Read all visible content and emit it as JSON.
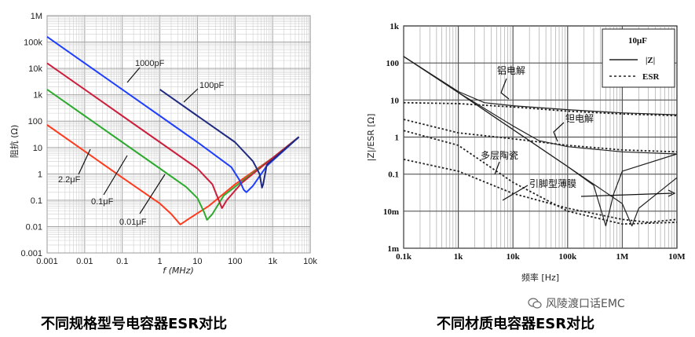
{
  "left_chart": {
    "y_ticks": [
      "1M",
      "100k",
      "10k",
      "1k",
      "100",
      "10",
      "1",
      "0.1",
      "0.01",
      "0.001"
    ],
    "x_ticks": [
      "0.001",
      "0.01",
      "0.1",
      "1",
      "10",
      "100",
      "1k",
      "10k"
    ],
    "ylabel": "阻抗 (Ω)",
    "xlabel": "f (MHz)",
    "annotations": [
      "1000pF",
      "100pF",
      "2.2μF",
      "0.1μF",
      "0.01μF"
    ],
    "caption": "不同规格型号电容器ESR对比"
  },
  "right_chart": {
    "y_ticks": [
      "1k",
      "100",
      "10",
      "1",
      "0.1",
      "10m",
      "1m"
    ],
    "x_ticks": [
      "0.1k",
      "1k",
      "10k",
      "100k",
      "1M",
      "10M"
    ],
    "ylabel": "|Z|/ESR [Ω]",
    "xlabel": "频率 [Hz]",
    "legend_title": "10μF",
    "legend_items": [
      "|Z|",
      "ESR"
    ],
    "annotations": [
      "铝电解",
      "钽电解",
      "多层陶瓷",
      "引脚型薄膜"
    ],
    "caption": "不同材质电容器ESR对比"
  },
  "watermark": "风陵渡口话EMC",
  "chart_data": [
    {
      "type": "line",
      "xlabel": "f (MHz)",
      "ylabel": "阻抗 (Ω)",
      "x_scale": "log",
      "y_scale": "log",
      "xlim": [
        0.001,
        10000
      ],
      "ylim": [
        0.001,
        1000000
      ],
      "grid": true,
      "series": [
        {
          "name": "2.2μF",
          "color": "#ff3b1f",
          "points": [
            [
              0.001,
              72
            ],
            [
              0.01,
              7.2
            ],
            [
              0.1,
              0.72
            ],
            [
              1,
              0.075
            ],
            [
              2,
              0.03
            ],
            [
              3.5,
              0.012
            ],
            [
              6,
              0.02
            ],
            [
              20,
              0.06
            ],
            [
              100,
              0.4
            ],
            [
              1000,
              4
            ],
            [
              5000,
              25
            ]
          ]
        },
        {
          "name": "0.1μF",
          "color": "#2eaa2e",
          "points": [
            [
              0.001,
              1590
            ],
            [
              0.01,
              159
            ],
            [
              0.1,
              15.9
            ],
            [
              1,
              1.6
            ],
            [
              5,
              0.32
            ],
            [
              10,
              0.12
            ],
            [
              15,
              0.035
            ],
            [
              18,
              0.018
            ],
            [
              25,
              0.03
            ],
            [
              50,
              0.15
            ],
            [
              200,
              0.7
            ],
            [
              1000,
              4
            ],
            [
              5000,
              25
            ]
          ]
        },
        {
          "name": "0.01μF",
          "color": "#cc1f3c",
          "points": [
            [
              0.001,
              15900
            ],
            [
              0.01,
              1590
            ],
            [
              0.1,
              159
            ],
            [
              1,
              15.9
            ],
            [
              10,
              1.6
            ],
            [
              25,
              0.4
            ],
            [
              35,
              0.12
            ],
            [
              45,
              0.05
            ],
            [
              60,
              0.1
            ],
            [
              150,
              0.45
            ],
            [
              1000,
              4
            ],
            [
              5000,
              25
            ]
          ]
        },
        {
          "name": "1000pF",
          "color": "#1f3fff",
          "points": [
            [
              0.001,
              159000
            ],
            [
              0.01,
              15900
            ],
            [
              0.1,
              1590
            ],
            [
              1,
              159
            ],
            [
              10,
              15.9
            ],
            [
              80,
              1.8
            ],
            [
              130,
              0.6
            ],
            [
              170,
              0.25
            ],
            [
              200,
              0.2
            ],
            [
              300,
              0.35
            ],
            [
              700,
              2
            ],
            [
              5000,
              25
            ]
          ]
        },
        {
          "name": "100pF",
          "color": "#1f2a80",
          "points": [
            [
              1,
              1590
            ],
            [
              10,
              159
            ],
            [
              100,
              15.9
            ],
            [
              300,
              3
            ],
            [
              450,
              1
            ],
            [
              520,
              0.3
            ],
            [
              560,
              0.4
            ],
            [
              700,
              2.2
            ],
            [
              5000,
              25
            ]
          ]
        }
      ]
    },
    {
      "type": "line",
      "xlabel": "频率 [Hz]",
      "ylabel": "|Z|/ESR [Ω]",
      "x_scale": "log",
      "y_scale": "log",
      "xlim": [
        100,
        10000000
      ],
      "ylim": [
        0.001,
        1000
      ],
      "grid": true,
      "legend": "top-right",
      "series": [
        {
          "name": "铝电解 |Z|",
          "style": "solid",
          "points": [
            [
              100,
              150
            ],
            [
              1000,
              17
            ],
            [
              3000,
              8.5
            ],
            [
              10000,
              7
            ],
            [
              100000,
              5.5
            ],
            [
              1000000,
              4.5
            ],
            [
              10000000,
              4
            ]
          ]
        },
        {
          "name": "铝电解 ESR",
          "style": "dashed",
          "points": [
            [
              100,
              8.5
            ],
            [
              1000,
              8
            ],
            [
              10000,
              6.5
            ],
            [
              100000,
              5
            ],
            [
              1000000,
              4.2
            ],
            [
              10000000,
              3.8
            ]
          ]
        },
        {
          "name": "钽电解 |Z|",
          "style": "solid",
          "points": [
            [
              100,
              150
            ],
            [
              1000,
              16
            ],
            [
              10000,
              2
            ],
            [
              30000,
              0.8
            ],
            [
              100000,
              0.55
            ],
            [
              1000000,
              0.4
            ],
            [
              10000000,
              0.35
            ]
          ]
        },
        {
          "name": "钽电解 ESR",
          "style": "dashed",
          "points": [
            [
              100,
              3
            ],
            [
              1000,
              1.3
            ],
            [
              10000,
              0.9
            ],
            [
              100000,
              0.6
            ],
            [
              1000000,
              0.45
            ],
            [
              10000000,
              0.4
            ]
          ]
        },
        {
          "name": "多层陶瓷 |Z|",
          "style": "solid",
          "points": [
            [
              100,
              150
            ],
            [
              1000,
              16
            ],
            [
              10000,
              1.6
            ],
            [
              100000,
              0.16
            ],
            [
              300000,
              0.05
            ],
            [
              500000,
              0.004
            ],
            [
              700000,
              0.03
            ],
            [
              1000000,
              0.12
            ],
            [
              10000000,
              0.35
            ]
          ]
        },
        {
          "name": "多层陶瓷 ESR",
          "style": "dashed",
          "points": [
            [
              100,
              1.5
            ],
            [
              1000,
              0.6
            ],
            [
              3000,
              0.2
            ],
            [
              10000,
              0.06
            ],
            [
              100000,
              0.01
            ],
            [
              1000000,
              0.0045
            ],
            [
              10000000,
              0.005
            ]
          ]
        },
        {
          "name": "引脚型薄膜 |Z|",
          "style": "solid",
          "points": [
            [
              100,
              150
            ],
            [
              1000,
              16
            ],
            [
              10000,
              1.6
            ],
            [
              100000,
              0.16
            ],
            [
              1000000,
              0.016
            ],
            [
              1500000,
              0.004
            ],
            [
              2000000,
              0.012
            ],
            [
              10000000,
              0.08
            ]
          ]
        },
        {
          "name": "引脚型薄膜 ESR",
          "style": "dashed",
          "points": [
            [
              100,
              0.25
            ],
            [
              1000,
              0.12
            ],
            [
              10000,
              0.03
            ],
            [
              100000,
              0.012
            ],
            [
              1000000,
              0.006
            ],
            [
              3000000,
              0.005
            ],
            [
              10000000,
              0.006
            ]
          ]
        }
      ]
    }
  ]
}
